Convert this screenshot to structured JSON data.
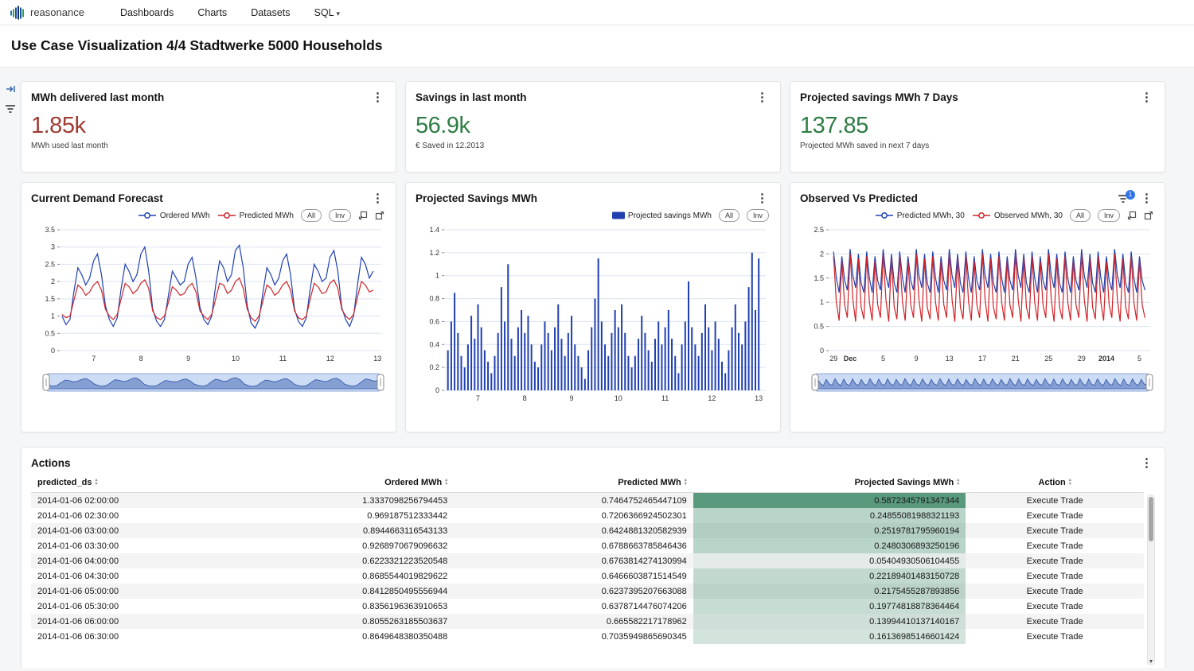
{
  "navbar": {
    "brand": "reasonance",
    "items": [
      {
        "label": "Dashboards"
      },
      {
        "label": "Charts"
      },
      {
        "label": "Datasets"
      },
      {
        "label": "SQL"
      }
    ]
  },
  "page": {
    "title": "Use Case Visualization 4/4 Stadtwerke 5000 Households"
  },
  "kpis": [
    {
      "title": "MWh delivered last month",
      "value": "1.85k",
      "subtitle": "MWh used last month",
      "color": "#a13a31"
    },
    {
      "title": "Savings in last month",
      "value": "56.9k",
      "subtitle": "€ Saved in 12.2013",
      "color": "#2f7d44"
    },
    {
      "title": "Projected savings MWh 7 Days",
      "value": "137.85",
      "subtitle": "Projected MWh saved in next 7 days",
      "color": "#2f7d44"
    }
  ],
  "charts_ui": {
    "all": "All",
    "inv": "Inv"
  },
  "chart_data": [
    {
      "type": "line",
      "title": "Current Demand Forecast",
      "xlabel": "",
      "ylabel": "",
      "ylim": [
        0,
        3.5
      ],
      "yticks": [
        0,
        0.5,
        1,
        1.5,
        2,
        2.5,
        3,
        3.5
      ],
      "xlim": [
        6.28,
        13.08
      ],
      "xticks": [
        {
          "v": 7,
          "label": "7"
        },
        {
          "v": 8,
          "label": "8"
        },
        {
          "v": 9,
          "label": "9"
        },
        {
          "v": 10,
          "label": "10"
        },
        {
          "v": 11,
          "label": "11"
        },
        {
          "v": 12,
          "label": "12"
        },
        {
          "v": 13,
          "label": "13"
        }
      ],
      "x_start": 6.33,
      "x_step": 0.0833,
      "grid": true,
      "legend_position": "top-right",
      "has_brush": true,
      "series": [
        {
          "name": "Ordered MWh",
          "color": "#2040b0",
          "values": [
            1,
            0.75,
            0.9,
            1.7,
            2.4,
            2.2,
            1.9,
            2.1,
            2.6,
            2.8,
            2.2,
            1.3,
            0.9,
            0.7,
            0.95,
            1.8,
            2.5,
            2.3,
            2,
            2.2,
            2.8,
            3,
            2.3,
            1.2,
            0.85,
            0.7,
            0.9,
            1.6,
            2.3,
            2.1,
            1.9,
            2,
            2.5,
            2.7,
            2.1,
            1.25,
            0.9,
            0.75,
            1,
            1.9,
            2.6,
            2.4,
            2,
            2.2,
            2.9,
            3.05,
            2.4,
            1.3,
            0.8,
            0.65,
            0.9,
            1.7,
            2.4,
            2.2,
            1.9,
            2.1,
            2.6,
            2.8,
            2.2,
            1.2,
            0.85,
            0.7,
            0.95,
            1.8,
            2.5,
            2.3,
            2,
            2.1,
            2.7,
            2.9,
            2.3,
            1.25,
            0.9,
            0.7,
            1,
            1.9,
            2.7,
            2.5,
            2.1,
            2.3
          ]
        },
        {
          "name": "Predicted MWh",
          "color": "#cf2428",
          "values": [
            1.05,
            0.95,
            1,
            1.45,
            1.9,
            1.8,
            1.6,
            1.7,
            1.9,
            2,
            1.75,
            1.2,
            1,
            0.9,
            1.05,
            1.5,
            1.95,
            1.85,
            1.65,
            1.75,
            1.95,
            2.05,
            1.8,
            1.15,
            0.95,
            0.9,
            1,
            1.4,
            1.85,
            1.75,
            1.6,
            1.65,
            1.85,
            1.95,
            1.7,
            1.15,
            1,
            0.9,
            1.05,
            1.5,
            1.95,
            1.9,
            1.65,
            1.75,
            2,
            2.1,
            1.8,
            1.2,
            0.95,
            0.85,
            1,
            1.45,
            1.9,
            1.8,
            1.6,
            1.7,
            1.9,
            2,
            1.75,
            1.15,
            0.95,
            0.9,
            1,
            1.5,
            1.95,
            1.85,
            1.65,
            1.7,
            1.95,
            2.05,
            1.8,
            1.2,
            1,
            0.9,
            1.05,
            1.55,
            2,
            1.9,
            1.7,
            1.75
          ]
        }
      ]
    },
    {
      "type": "bar",
      "title": "Projected Savings MWh",
      "xlabel": "",
      "ylabel": "",
      "ylim": [
        0,
        1.4
      ],
      "yticks": [
        0,
        0.2,
        0.4,
        0.6,
        0.8,
        1,
        1.2,
        1.4
      ],
      "xlim": [
        6.28,
        13.15
      ],
      "xticks": [
        {
          "v": 7,
          "label": "7"
        },
        {
          "v": 8,
          "label": "8"
        },
        {
          "v": 9,
          "label": "9"
        },
        {
          "v": 10,
          "label": "10"
        },
        {
          "v": 11,
          "label": "11"
        },
        {
          "v": 12,
          "label": "12"
        },
        {
          "v": 13,
          "label": "13"
        }
      ],
      "x_start": 6.36,
      "x_step": 0.0714,
      "grid": true,
      "legend_position": "top-right",
      "has_brush": false,
      "series": [
        {
          "name": "Projected savings MWh",
          "color": "#2040b0",
          "values": [
            0.35,
            0.6,
            0.85,
            0.5,
            0.3,
            0.2,
            0.4,
            0.65,
            0.45,
            0.75,
            0.55,
            0.35,
            0.25,
            0.15,
            0.3,
            0.5,
            0.9,
            0.6,
            1.1,
            0.45,
            0.3,
            0.55,
            0.7,
            0.5,
            0.65,
            0.4,
            0.25,
            0.2,
            0.4,
            0.6,
            0.5,
            0.35,
            0.55,
            0.75,
            0.45,
            0.3,
            0.5,
            0.65,
            0.4,
            0.3,
            0.2,
            0.1,
            0.35,
            0.55,
            0.8,
            1.15,
            0.6,
            0.4,
            0.3,
            0.5,
            0.7,
            0.55,
            0.75,
            0.5,
            0.3,
            0.2,
            0.3,
            0.45,
            0.65,
            0.5,
            0.35,
            0.25,
            0.45,
            0.6,
            0.4,
            0.55,
            0.7,
            0.45,
            0.3,
            0.15,
            0.4,
            0.6,
            0.95,
            0.55,
            0.4,
            0.3,
            0.5,
            0.75,
            0.55,
            0.35,
            0.6,
            0.45,
            0.25,
            0.15,
            0.35,
            0.55,
            0.75,
            0.5,
            0.4,
            0.6,
            0.9,
            1.2,
            0.7,
            1.15
          ]
        }
      ]
    },
    {
      "type": "line",
      "title": "Observed Vs Predicted",
      "xlabel": "",
      "ylabel": "",
      "ylim": [
        0,
        2.5
      ],
      "yticks": [
        0,
        0.5,
        1,
        1.5,
        2,
        2.5
      ],
      "xlim": [
        -0.6,
        38.3
      ],
      "xticks": [
        {
          "v": 0,
          "label": "29"
        },
        {
          "v": 2,
          "label": "Dec",
          "bold": true
        },
        {
          "v": 6,
          "label": "5"
        },
        {
          "v": 10,
          "label": "9"
        },
        {
          "v": 14,
          "label": "13"
        },
        {
          "v": 18,
          "label": "17"
        },
        {
          "v": 22,
          "label": "21"
        },
        {
          "v": 26,
          "label": "25"
        },
        {
          "v": 30,
          "label": "29"
        },
        {
          "v": 33,
          "label": "2014",
          "bold": true
        },
        {
          "v": 37,
          "label": "5"
        }
      ],
      "x_start": 0,
      "x_step": 0.3333,
      "grid": true,
      "legend_position": "top-right",
      "has_brush": true,
      "filter_badge_count": "1",
      "series": [
        {
          "name": "Predicted MWh, 30",
          "color": "#2040b0",
          "values": [
            2.05,
            1.5,
            1.2,
            1.95,
            1.45,
            1.25,
            2.1,
            1.55,
            1.3,
            2,
            1.4,
            1.2,
            2.05,
            1.5,
            1.2,
            1.95,
            1.45,
            1.25,
            2.1,
            1.55,
            1.3,
            2,
            1.4,
            1.2,
            2.05,
            1.5,
            1.2,
            1.95,
            1.45,
            1.25,
            2.1,
            1.55,
            1.3,
            2,
            1.4,
            1.2,
            2.05,
            1.5,
            1.2,
            1.95,
            1.45,
            1.25,
            2.1,
            1.55,
            1.3,
            2,
            1.4,
            1.2,
            2.05,
            1.5,
            1.2,
            1.95,
            1.45,
            1.25,
            2.1,
            1.55,
            1.3,
            2,
            1.4,
            1.2,
            2.05,
            1.5,
            1.2,
            1.95,
            1.45,
            1.25,
            2.1,
            1.55,
            1.3,
            2,
            1.4,
            1.2,
            2.05,
            1.5,
            1.2,
            1.95,
            1.45,
            1.25,
            2.1,
            1.55,
            1.3,
            2,
            1.4,
            1.2,
            2.05,
            1.5,
            1.2,
            1.95,
            1.45,
            1.25,
            2.1,
            1.55,
            1.3,
            2,
            1.4,
            1.2,
            2.05,
            1.5,
            1.2,
            1.95,
            1.45,
            1.25,
            2.1,
            1.55,
            1.3,
            2,
            1.4,
            1.2,
            2.05,
            1.5,
            1.2,
            1.95,
            1.45,
            1.25
          ]
        },
        {
          "name": "Observed MWh, 30",
          "color": "#cf2428",
          "values": [
            1.95,
            1,
            0.62,
            1.85,
            0.95,
            0.68,
            2,
            1.05,
            0.6,
            1.9,
            0.9,
            0.65,
            1.95,
            1,
            0.62,
            1.85,
            0.95,
            0.68,
            2,
            1.05,
            0.6,
            1.9,
            0.9,
            0.65,
            1.95,
            1,
            0.62,
            1.85,
            0.95,
            0.68,
            2,
            1.05,
            0.6,
            1.9,
            0.9,
            0.65,
            1.95,
            1,
            0.62,
            1.85,
            0.95,
            0.68,
            2,
            1.05,
            0.6,
            1.9,
            0.9,
            0.65,
            1.95,
            1,
            0.62,
            1.85,
            0.95,
            0.68,
            2,
            1.05,
            0.6,
            1.9,
            0.9,
            0.65,
            1.95,
            1,
            0.62,
            1.85,
            0.95,
            0.68,
            2,
            1.05,
            0.6,
            1.9,
            0.9,
            0.65,
            1.95,
            1,
            0.62,
            1.85,
            0.95,
            0.68,
            2,
            1.05,
            0.6,
            1.9,
            0.9,
            0.65,
            1.95,
            1,
            0.62,
            1.85,
            0.95,
            0.68,
            2,
            1.05,
            0.6,
            1.9,
            0.9,
            0.65,
            1.95,
            1,
            0.62,
            1.85,
            0.95,
            0.68,
            2,
            1.05,
            0.6,
            1.9,
            0.9,
            0.65,
            1.95,
            1,
            0.62,
            1.85,
            0.95,
            0.68
          ]
        }
      ]
    }
  ],
  "actions_table": {
    "title": "Actions",
    "columns": [
      "predicted_ds",
      "Ordered MWh",
      "Predicted MWh",
      "Projected Savings MWh",
      "Action"
    ],
    "highlight_col": 3,
    "highlight_color": "#3d8968",
    "rows": [
      [
        "2014-01-06 02:00:00",
        "1.3337098256794453",
        "0.7464752465447109",
        "0.5872345791347344",
        "Execute Trade"
      ],
      [
        "2014-01-06 02:30:00",
        "0.969187512333442",
        "0.7206366924502301",
        "0.24855081988321193",
        "Execute Trade"
      ],
      [
        "2014-01-06 03:00:00",
        "0.8944663116543133",
        "0.6424881320582939",
        "0.2519781795960194",
        "Execute Trade"
      ],
      [
        "2014-01-06 03:30:00",
        "0.9268970679096632",
        "0.6788663785846436",
        "0.2480306893250196",
        "Execute Trade"
      ],
      [
        "2014-01-06 04:00:00",
        "0.6223321223520548",
        "0.6763814274130994",
        "0.05404930506104455",
        "Execute Trade"
      ],
      [
        "2014-01-06 04:30:00",
        "0.8685544019829622",
        "0.6466603871514549",
        "0.22189401483150728",
        "Execute Trade"
      ],
      [
        "2014-01-06 05:00:00",
        "0.8412850495556944",
        "0.6237395207663088",
        "0.2175455287893856",
        "Execute Trade"
      ],
      [
        "2014-01-06 05:30:00",
        "0.8356196363910653",
        "0.6378714476074206",
        "0.19774818878364464",
        "Execute Trade"
      ],
      [
        "2014-01-06 06:00:00",
        "0.8055263185503637",
        "0.665582217178962",
        "0.13994410137140167",
        "Execute Trade"
      ],
      [
        "2014-01-06 06:30:00",
        "0.8649648380350488",
        "0.7035949865690345",
        "0.16136985146601424",
        "Execute Trade"
      ]
    ]
  }
}
